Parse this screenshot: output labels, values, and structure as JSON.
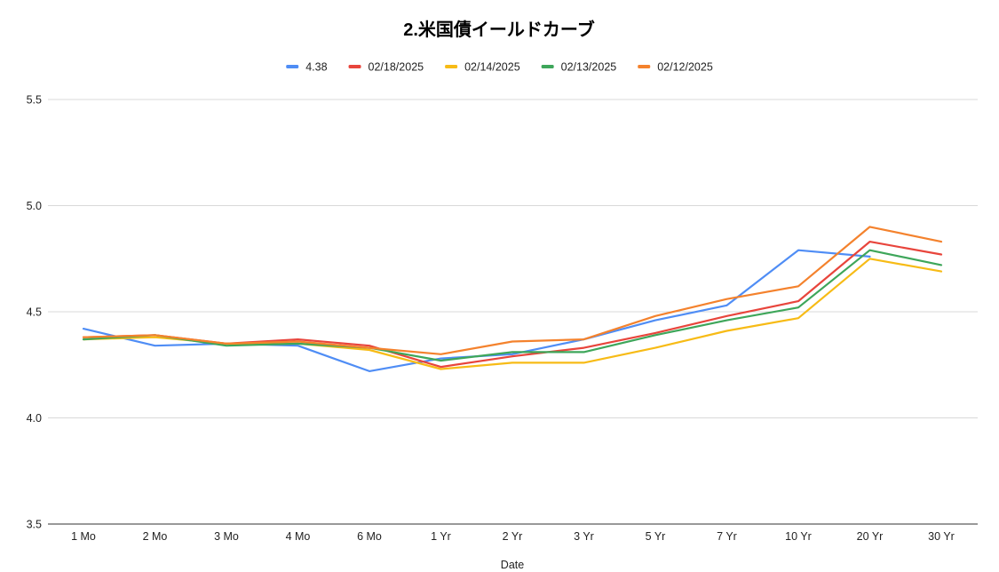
{
  "chart_data": {
    "type": "line",
    "title": "2.米国債イールドカーブ",
    "xlabel": "Date",
    "ylabel": "",
    "ylim": [
      3.5,
      5.5
    ],
    "yticks": [
      "3.5",
      "4.0",
      "4.5",
      "5.0",
      "5.5"
    ],
    "grid": true,
    "legend_position": "top",
    "categories": [
      "1 Mo",
      "2 Mo",
      "3 Mo",
      "4 Mo",
      "6 Mo",
      "1 Yr",
      "2 Yr",
      "3 Yr",
      "5 Yr",
      "7 Yr",
      "10 Yr",
      "20 Yr",
      "30 Yr"
    ],
    "series": [
      {
        "name": "4.38",
        "color": "#4f8df5",
        "values": [
          4.42,
          4.34,
          4.35,
          4.34,
          4.22,
          4.28,
          4.3,
          4.37,
          4.46,
          4.53,
          4.79,
          4.76,
          null
        ]
      },
      {
        "name": "02/18/2025",
        "color": "#e8453c",
        "values": [
          4.38,
          4.39,
          4.35,
          4.37,
          4.34,
          4.24,
          4.29,
          4.33,
          4.4,
          4.48,
          4.55,
          4.83,
          4.77
        ]
      },
      {
        "name": "02/14/2025",
        "color": "#f7bb16",
        "values": [
          4.37,
          4.38,
          4.35,
          4.35,
          4.32,
          4.23,
          4.26,
          4.26,
          4.33,
          4.41,
          4.47,
          4.75,
          4.69
        ]
      },
      {
        "name": "02/13/2025",
        "color": "#3ea65a",
        "values": [
          4.37,
          4.39,
          4.34,
          4.35,
          4.33,
          4.27,
          4.31,
          4.31,
          4.39,
          4.46,
          4.52,
          4.79,
          4.72
        ]
      },
      {
        "name": "02/12/2025",
        "color": "#f4822d",
        "values": [
          4.38,
          4.39,
          4.35,
          4.36,
          4.33,
          4.3,
          4.36,
          4.37,
          4.48,
          4.56,
          4.62,
          4.9,
          4.83
        ]
      }
    ]
  }
}
